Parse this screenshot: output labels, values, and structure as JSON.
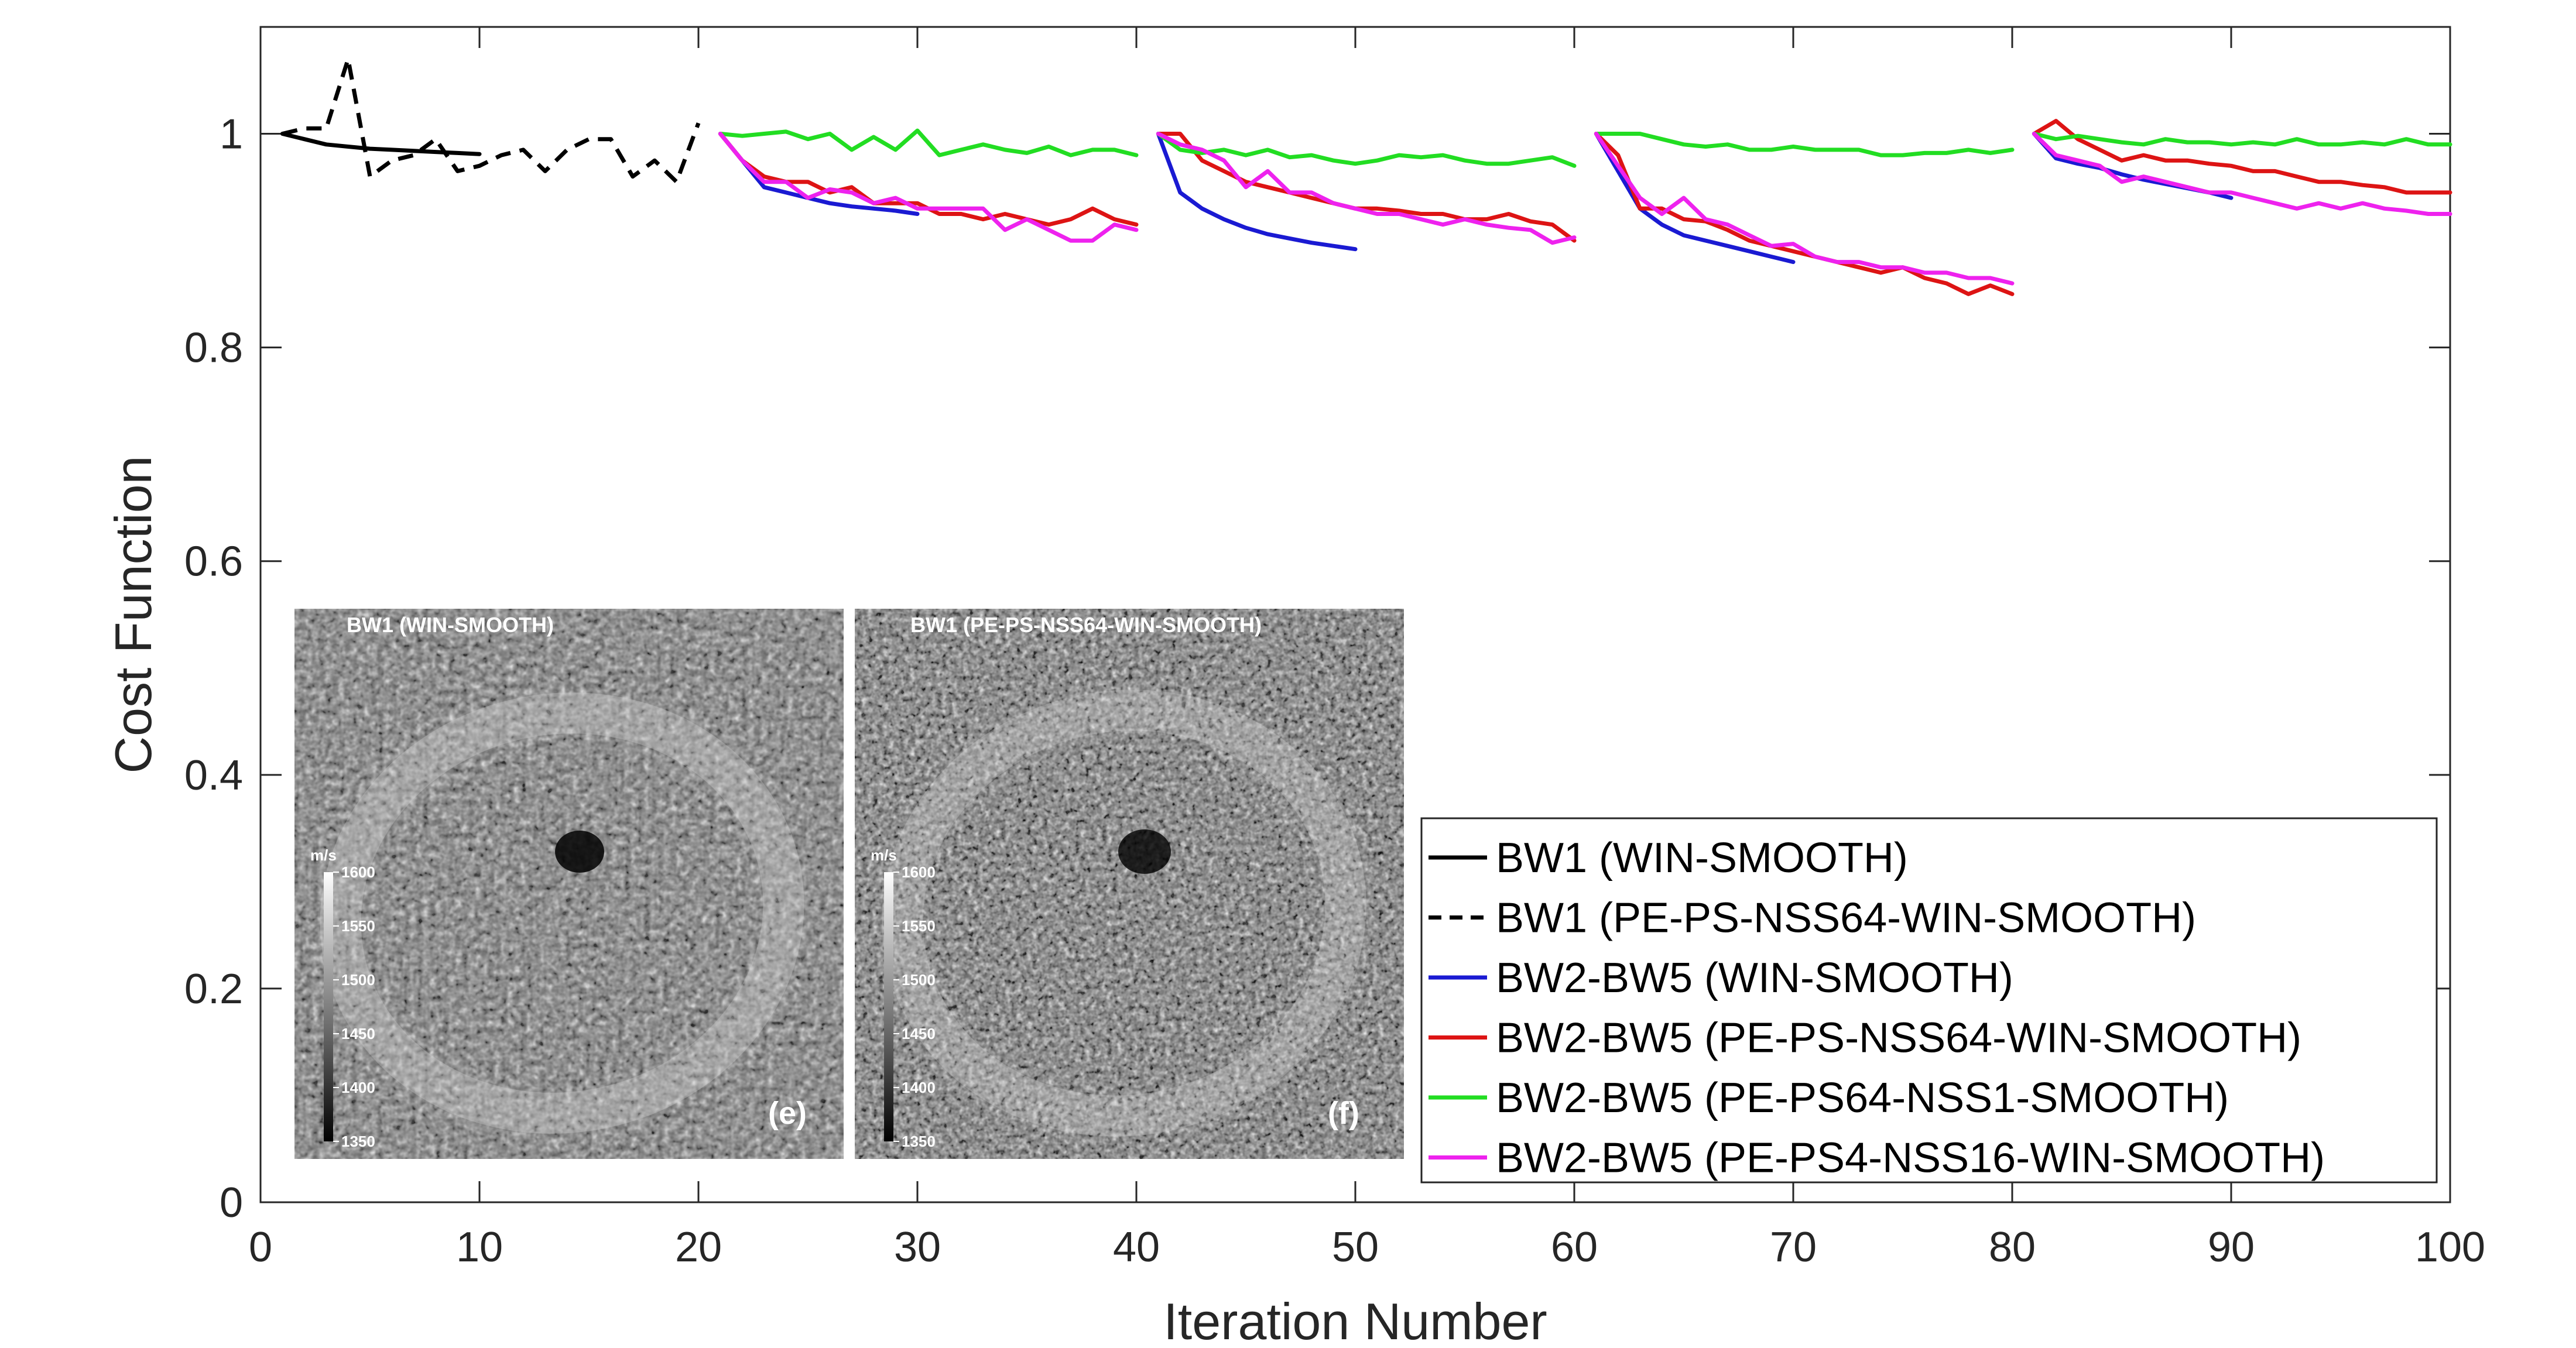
{
  "chart_data": {
    "type": "line",
    "title": "",
    "xlabel": "Iteration Number",
    "ylabel": "Cost Function",
    "xlim": [
      0,
      100
    ],
    "ylim": [
      0,
      1.1
    ],
    "xticks": [
      0,
      10,
      20,
      30,
      40,
      50,
      60,
      70,
      80,
      90,
      100
    ],
    "yticks": [
      0,
      0.2,
      0.4,
      0.6,
      0.8,
      1
    ],
    "ytick_labels": [
      "0",
      "0.2",
      "0.4",
      "0.6",
      "0.8",
      "1"
    ],
    "grid": false,
    "legend_position": "bottom-right",
    "series": [
      {
        "name": "BW1 (WIN-SMOOTH)",
        "color": "#000000",
        "dash": "solid",
        "segments": [
          {
            "x": [
              1,
              2,
              3,
              4,
              5,
              6,
              7,
              8,
              9,
              10
            ],
            "y": [
              1.0,
              0.995,
              0.99,
              0.988,
              0.986,
              0.985,
              0.984,
              0.983,
              0.982,
              0.981
            ]
          }
        ]
      },
      {
        "name": "BW1 (PE-PS-NSS64-WIN-SMOOTH)",
        "color": "#000000",
        "dash": "dashed",
        "segments": [
          {
            "x": [
              1,
              2,
              3,
              4,
              5,
              6,
              7,
              8,
              9,
              10,
              11,
              12,
              13,
              14,
              15,
              16,
              17,
              18,
              19,
              20
            ],
            "y": [
              1.0,
              1.005,
              1.005,
              1.07,
              0.96,
              0.975,
              0.98,
              0.995,
              0.965,
              0.97,
              0.98,
              0.985,
              0.965,
              0.985,
              0.995,
              0.995,
              0.96,
              0.975,
              0.955,
              1.01
            ]
          }
        ]
      },
      {
        "name": "BW2-BW5 (WIN-SMOOTH)",
        "color": "#1a1ad2",
        "dash": "solid",
        "segments": [
          {
            "x": [
              21,
              22,
              23,
              24,
              25,
              26,
              27,
              28,
              29,
              30
            ],
            "y": [
              1.0,
              0.975,
              0.95,
              0.945,
              0.94,
              0.935,
              0.932,
              0.93,
              0.928,
              0.925
            ]
          },
          {
            "x": [
              41,
              42,
              43,
              44,
              45,
              46,
              47,
              48,
              49,
              50
            ],
            "y": [
              1.0,
              0.945,
              0.93,
              0.92,
              0.912,
              0.906,
              0.902,
              0.898,
              0.895,
              0.892
            ]
          },
          {
            "x": [
              61,
              62,
              63,
              64,
              65,
              66,
              67,
              68,
              69,
              70
            ],
            "y": [
              1.0,
              0.965,
              0.93,
              0.915,
              0.905,
              0.9,
              0.895,
              0.89,
              0.885,
              0.88
            ]
          },
          {
            "x": [
              81,
              82,
              83,
              84,
              85,
              86,
              87,
              88,
              89,
              90
            ],
            "y": [
              1.0,
              0.977,
              0.972,
              0.968,
              0.962,
              0.957,
              0.953,
              0.949,
              0.945,
              0.94
            ]
          }
        ]
      },
      {
        "name": "BW2-BW5 (PE-PS-NSS64-WIN-SMOOTH)",
        "color": "#dd1414",
        "dash": "solid",
        "segments": [
          {
            "x": [
              21,
              22,
              23,
              24,
              25,
              26,
              27,
              28,
              29,
              30,
              31,
              32,
              33,
              34,
              35,
              36,
              37,
              38,
              39,
              40
            ],
            "y": [
              1.0,
              0.975,
              0.96,
              0.955,
              0.955,
              0.945,
              0.95,
              0.935,
              0.935,
              0.935,
              0.925,
              0.925,
              0.92,
              0.925,
              0.92,
              0.915,
              0.92,
              0.93,
              0.92,
              0.915
            ]
          },
          {
            "x": [
              41,
              42,
              43,
              44,
              45,
              46,
              47,
              48,
              49,
              50,
              51,
              52,
              53,
              54,
              55,
              56,
              57,
              58,
              59,
              60
            ],
            "y": [
              1.0,
              1.0,
              0.975,
              0.965,
              0.955,
              0.95,
              0.945,
              0.94,
              0.935,
              0.93,
              0.93,
              0.928,
              0.925,
              0.925,
              0.92,
              0.92,
              0.925,
              0.918,
              0.915,
              0.9
            ]
          },
          {
            "x": [
              61,
              62,
              63,
              64,
              65,
              66,
              67,
              68,
              69,
              70,
              71,
              72,
              73,
              74,
              75,
              76,
              77,
              78,
              79,
              80
            ],
            "y": [
              1.0,
              0.98,
              0.93,
              0.93,
              0.92,
              0.918,
              0.91,
              0.9,
              0.895,
              0.89,
              0.885,
              0.88,
              0.875,
              0.87,
              0.875,
              0.865,
              0.86,
              0.85,
              0.858,
              0.85
            ]
          },
          {
            "x": [
              81,
              82,
              83,
              84,
              85,
              86,
              87,
              88,
              89,
              90,
              91,
              92,
              93,
              94,
              95,
              96,
              97,
              98,
              99,
              100
            ],
            "y": [
              1.0,
              1.012,
              0.995,
              0.985,
              0.975,
              0.98,
              0.975,
              0.975,
              0.972,
              0.97,
              0.965,
              0.965,
              0.96,
              0.955,
              0.955,
              0.952,
              0.95,
              0.945,
              0.945,
              0.945
            ]
          }
        ]
      },
      {
        "name": "BW2-BW5 (PE-PS64-NSS1-SMOOTH)",
        "color": "#22dd22",
        "dash": "solid",
        "segments": [
          {
            "x": [
              21,
              22,
              23,
              24,
              25,
              26,
              27,
              28,
              29,
              30,
              31,
              32,
              33,
              34,
              35,
              36,
              37,
              38,
              39,
              40
            ],
            "y": [
              1.0,
              0.998,
              1.0,
              1.002,
              0.995,
              1.0,
              0.985,
              0.997,
              0.985,
              1.003,
              0.98,
              0.985,
              0.99,
              0.985,
              0.982,
              0.988,
              0.98,
              0.985,
              0.985,
              0.98
            ]
          },
          {
            "x": [
              41,
              42,
              43,
              44,
              45,
              46,
              47,
              48,
              49,
              50,
              51,
              52,
              53,
              54,
              55,
              56,
              57,
              58,
              59,
              60
            ],
            "y": [
              1.0,
              0.985,
              0.982,
              0.985,
              0.98,
              0.985,
              0.978,
              0.98,
              0.975,
              0.972,
              0.975,
              0.98,
              0.978,
              0.98,
              0.975,
              0.972,
              0.972,
              0.975,
              0.978,
              0.97
            ]
          },
          {
            "x": [
              61,
              62,
              63,
              64,
              65,
              66,
              67,
              68,
              69,
              70,
              71,
              72,
              73,
              74,
              75,
              76,
              77,
              78,
              79,
              80
            ],
            "y": [
              1.0,
              1.0,
              1.0,
              0.995,
              0.99,
              0.988,
              0.99,
              0.985,
              0.985,
              0.988,
              0.985,
              0.985,
              0.985,
              0.98,
              0.98,
              0.982,
              0.982,
              0.985,
              0.982,
              0.985
            ]
          },
          {
            "x": [
              81,
              82,
              83,
              84,
              85,
              86,
              87,
              88,
              89,
              90,
              91,
              92,
              93,
              94,
              95,
              96,
              97,
              98,
              99,
              100
            ],
            "y": [
              1.0,
              0.995,
              0.998,
              0.995,
              0.992,
              0.99,
              0.995,
              0.992,
              0.992,
              0.99,
              0.992,
              0.99,
              0.995,
              0.99,
              0.99,
              0.992,
              0.99,
              0.995,
              0.99,
              0.99
            ]
          }
        ]
      },
      {
        "name": "BW2-BW5 (PE-PS4-NSS16-WIN-SMOOTH)",
        "color": "#ee22ee",
        "dash": "solid",
        "segments": [
          {
            "x": [
              21,
              22,
              23,
              24,
              25,
              26,
              27,
              28,
              29,
              30,
              31,
              32,
              33,
              34,
              35,
              36,
              37,
              38,
              39,
              40
            ],
            "y": [
              1.0,
              0.975,
              0.955,
              0.955,
              0.94,
              0.948,
              0.945,
              0.935,
              0.94,
              0.93,
              0.93,
              0.93,
              0.93,
              0.91,
              0.92,
              0.91,
              0.9,
              0.9,
              0.915,
              0.91
            ]
          },
          {
            "x": [
              41,
              42,
              43,
              44,
              45,
              46,
              47,
              48,
              49,
              50,
              51,
              52,
              53,
              54,
              55,
              56,
              57,
              58,
              59,
              60
            ],
            "y": [
              1.0,
              0.99,
              0.985,
              0.975,
              0.95,
              0.965,
              0.945,
              0.945,
              0.935,
              0.93,
              0.925,
              0.925,
              0.92,
              0.915,
              0.92,
              0.915,
              0.912,
              0.91,
              0.898,
              0.903
            ]
          },
          {
            "x": [
              61,
              62,
              63,
              64,
              65,
              66,
              67,
              68,
              69,
              70,
              71,
              72,
              73,
              74,
              75,
              76,
              77,
              78,
              79,
              80
            ],
            "y": [
              1.0,
              0.97,
              0.94,
              0.925,
              0.94,
              0.92,
              0.915,
              0.905,
              0.895,
              0.897,
              0.885,
              0.88,
              0.88,
              0.875,
              0.875,
              0.87,
              0.87,
              0.865,
              0.865,
              0.86
            ]
          },
          {
            "x": [
              81,
              82,
              83,
              84,
              85,
              86,
              87,
              88,
              89,
              90,
              91,
              92,
              93,
              94,
              95,
              96,
              97,
              98,
              99,
              100
            ],
            "y": [
              1.0,
              0.98,
              0.975,
              0.97,
              0.955,
              0.96,
              0.955,
              0.95,
              0.945,
              0.945,
              0.94,
              0.935,
              0.93,
              0.935,
              0.93,
              0.935,
              0.93,
              0.928,
              0.925,
              0.925
            ]
          }
        ]
      }
    ]
  },
  "insets": [
    {
      "title": "BW1 (WIN-SMOOTH)",
      "panel_label": "(e)",
      "colorbar_unit": "m/s",
      "colorbar_ticks": [
        "1600",
        "1550",
        "1500",
        "1450",
        "1400",
        "1350"
      ],
      "colormap": "gray"
    },
    {
      "title": "BW1 (PE-PS-NSS64-WIN-SMOOTH)",
      "panel_label": "(f)",
      "colorbar_unit": "m/s",
      "colorbar_ticks": [
        "1600",
        "1550",
        "1500",
        "1450",
        "1400",
        "1350"
      ],
      "colormap": "gray"
    }
  ]
}
